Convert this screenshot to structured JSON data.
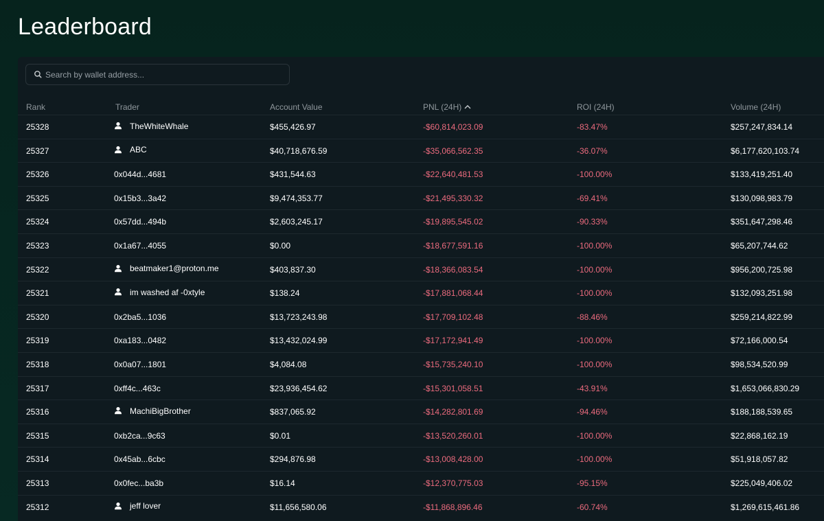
{
  "page": {
    "title": "Leaderboard"
  },
  "search": {
    "placeholder": "Search by wallet address..."
  },
  "table": {
    "columns": {
      "rank": "Rank",
      "trader": "Trader",
      "account_value": "Account Value",
      "pnl": "PNL (24H)",
      "roi": "ROI (24H)",
      "volume": "Volume (24H)"
    },
    "sort": {
      "column": "pnl",
      "direction": "ascending"
    },
    "rows": [
      {
        "rank": "25328",
        "trader": "TheWhiteWhale",
        "has_profile": true,
        "account_value": "$455,426.97",
        "pnl": "-$60,814,023.09",
        "roi": "-83.47%",
        "volume": "$257,247,834.14"
      },
      {
        "rank": "25327",
        "trader": "ABC",
        "has_profile": true,
        "account_value": "$40,718,676.59",
        "pnl": "-$35,066,562.35",
        "roi": "-36.07%",
        "volume": "$6,177,620,103.74"
      },
      {
        "rank": "25326",
        "trader": "0x044d...4681",
        "has_profile": false,
        "account_value": "$431,544.63",
        "pnl": "-$22,640,481.53",
        "roi": "-100.00%",
        "volume": "$133,419,251.40"
      },
      {
        "rank": "25325",
        "trader": "0x15b3...3a42",
        "has_profile": false,
        "account_value": "$9,474,353.77",
        "pnl": "-$21,495,330.32",
        "roi": "-69.41%",
        "volume": "$130,098,983.79"
      },
      {
        "rank": "25324",
        "trader": "0x57dd...494b",
        "has_profile": false,
        "account_value": "$2,603,245.17",
        "pnl": "-$19,895,545.02",
        "roi": "-90.33%",
        "volume": "$351,647,298.46"
      },
      {
        "rank": "25323",
        "trader": "0x1a67...4055",
        "has_profile": false,
        "account_value": "$0.00",
        "pnl": "-$18,677,591.16",
        "roi": "-100.00%",
        "volume": "$65,207,744.62"
      },
      {
        "rank": "25322",
        "trader": "beatmaker1@proton.me",
        "has_profile": true,
        "account_value": "$403,837.30",
        "pnl": "-$18,366,083.54",
        "roi": "-100.00%",
        "volume": "$956,200,725.98"
      },
      {
        "rank": "25321",
        "trader": "im washed af -0xtyle",
        "has_profile": true,
        "account_value": "$138.24",
        "pnl": "-$17,881,068.44",
        "roi": "-100.00%",
        "volume": "$132,093,251.98"
      },
      {
        "rank": "25320",
        "trader": "0x2ba5...1036",
        "has_profile": false,
        "account_value": "$13,723,243.98",
        "pnl": "-$17,709,102.48",
        "roi": "-88.46%",
        "volume": "$259,214,822.99"
      },
      {
        "rank": "25319",
        "trader": "0xa183...0482",
        "has_profile": false,
        "account_value": "$13,432,024.99",
        "pnl": "-$17,172,941.49",
        "roi": "-100.00%",
        "volume": "$72,166,000.54"
      },
      {
        "rank": "25318",
        "trader": "0x0a07...1801",
        "has_profile": false,
        "account_value": "$4,084.08",
        "pnl": "-$15,735,240.10",
        "roi": "-100.00%",
        "volume": "$98,534,520.99"
      },
      {
        "rank": "25317",
        "trader": "0xff4c...463c",
        "has_profile": false,
        "account_value": "$23,936,454.62",
        "pnl": "-$15,301,058.51",
        "roi": "-43.91%",
        "volume": "$1,653,066,830.29"
      },
      {
        "rank": "25316",
        "trader": "MachiBigBrother",
        "has_profile": true,
        "account_value": "$837,065.92",
        "pnl": "-$14,282,801.69",
        "roi": "-94.46%",
        "volume": "$188,188,539.65"
      },
      {
        "rank": "25315",
        "trader": "0xb2ca...9c63",
        "has_profile": false,
        "account_value": "$0.01",
        "pnl": "-$13,520,260.01",
        "roi": "-100.00%",
        "volume": "$22,868,162.19"
      },
      {
        "rank": "25314",
        "trader": "0x45ab...6cbc",
        "has_profile": false,
        "account_value": "$294,876.98",
        "pnl": "-$13,008,428.00",
        "roi": "-100.00%",
        "volume": "$51,918,057.82"
      },
      {
        "rank": "25313",
        "trader": "0x0fec...ba3b",
        "has_profile": false,
        "account_value": "$16.14",
        "pnl": "-$12,370,775.03",
        "roi": "-95.15%",
        "volume": "$225,049,406.02"
      },
      {
        "rank": "25312",
        "trader": "jeff lover",
        "has_profile": true,
        "account_value": "$11,656,580.06",
        "pnl": "-$11,868,896.46",
        "roi": "-60.74%",
        "volume": "$1,269,615,461.86"
      }
    ]
  },
  "colors": {
    "background": "#072923",
    "panel": "#0f1a1f",
    "text": "#ffffff",
    "muted": "#8f979c",
    "negative": "#ec6b7e"
  },
  "icons": {
    "search": "search-icon",
    "sort": "chevron-up-icon",
    "profile": "user-icon"
  }
}
